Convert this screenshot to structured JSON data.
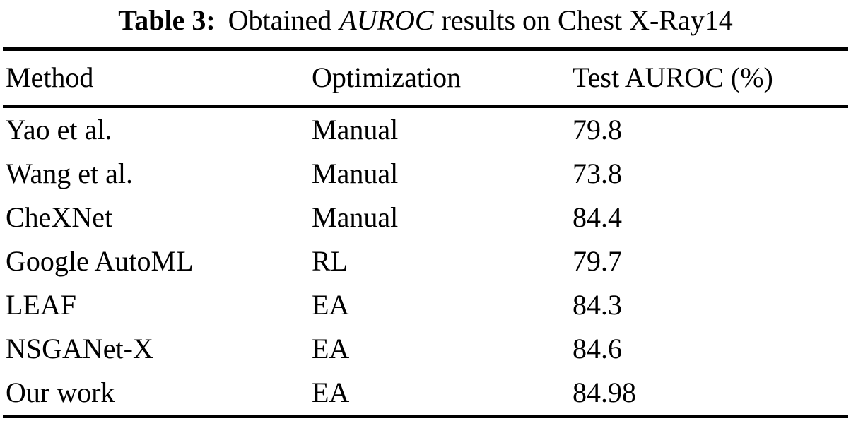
{
  "title": {
    "label": "Table 3:",
    "pre": "Obtained",
    "emph": "AUROC",
    "post": "results on Chest X-Ray14"
  },
  "table": {
    "headers": [
      "Method",
      "Optimization",
      "Test AUROC (%)"
    ],
    "rows": [
      {
        "method": "Yao et al.",
        "optimization": "Manual",
        "auroc": "79.8"
      },
      {
        "method": "Wang et al.",
        "optimization": "Manual",
        "auroc": "73.8"
      },
      {
        "method": "CheXNet",
        "optimization": "Manual",
        "auroc": "84.4"
      },
      {
        "method": "Google AutoML",
        "optimization": "RL",
        "auroc": "79.7"
      },
      {
        "method": "LEAF",
        "optimization": "EA",
        "auroc": "84.3"
      },
      {
        "method": "NSGANet-X",
        "optimization": "EA",
        "auroc": "84.6"
      },
      {
        "method": "Our work",
        "optimization": "EA",
        "auroc": "84.98"
      }
    ]
  },
  "colors": {
    "background": "#ffffff",
    "text": "#000000",
    "rule": "#000000"
  }
}
